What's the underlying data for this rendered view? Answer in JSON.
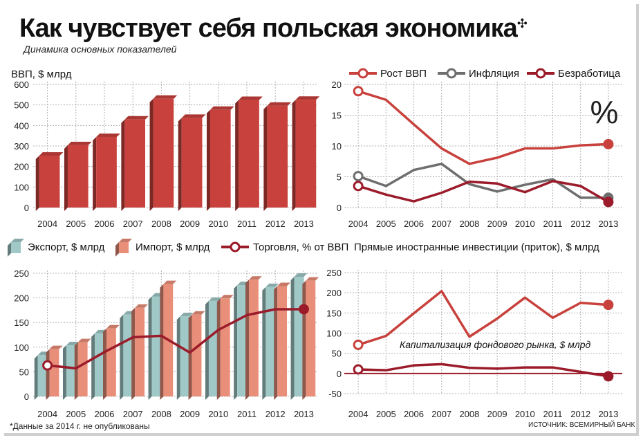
{
  "title": "Как чувствует себя польская экономика",
  "title_mark": "✣",
  "subtitle": "Динамика основных показателей",
  "footnote": "*Данные за 2014 г. не опубликованы",
  "source": "ИСТОЧНИК: ВСЕМИРНЫЙ БАНК",
  "colors": {
    "red": "#c8413c",
    "dark_red": "#9b1b2a",
    "gray": "#6e6e6e",
    "teal": "#9fc8c6",
    "salmon": "#e98e79",
    "grid": "#b0b0b0"
  },
  "chart_data": [
    {
      "id": "gdp",
      "type": "bar",
      "title": "ВВП, $ млрд",
      "categories": [
        "2004",
        "2005",
        "2006",
        "2007",
        "2008",
        "2009",
        "2010",
        "2011",
        "2012",
        "2013"
      ],
      "values": [
        253,
        304,
        344,
        429,
        530,
        437,
        476,
        524,
        496,
        525
      ],
      "ylim": [
        0,
        600
      ],
      "yticks": [
        0,
        100,
        200,
        300,
        400,
        500,
        600
      ],
      "grid": true
    },
    {
      "id": "macro",
      "type": "line",
      "unit_label": "%",
      "x": [
        "2004",
        "2005",
        "2006",
        "2007",
        "2008",
        "2009",
        "2010",
        "2011",
        "2012",
        "2013"
      ],
      "series": [
        {
          "name": "Рост ВВП",
          "color": "red",
          "values": [
            18.9,
            17.5,
            13.5,
            9.6,
            7.1,
            8.1,
            9.6,
            9.6,
            10.1,
            10.3
          ]
        },
        {
          "name": "Инфляция",
          "color": "gray",
          "values": [
            5.1,
            3.5,
            6.1,
            7.1,
            3.8,
            2.6,
            3.7,
            4.6,
            1.6,
            1.6
          ]
        },
        {
          "name": "Безработица",
          "color": "dark_red",
          "values": [
            3.5,
            2.1,
            1.0,
            2.4,
            4.2,
            3.9,
            2.5,
            4.3,
            3.5,
            0.9
          ]
        }
      ],
      "ylim": [
        0,
        20
      ],
      "yticks": [
        0,
        5,
        10,
        15,
        20
      ],
      "legend": "top",
      "grid": true
    },
    {
      "id": "trade",
      "type": "bar",
      "categories": [
        "2004",
        "2005",
        "2006",
        "2007",
        "2008",
        "2009",
        "2010",
        "2011",
        "2012",
        "2013"
      ],
      "series": [
        {
          "name": "Экспорт, $ млрд",
          "color": "teal",
          "values": [
            84,
            104,
            128,
            166,
            203,
            163,
            194,
            226,
            222,
            243
          ]
        },
        {
          "name": "Импорт, $ млрд",
          "color": "salmon",
          "values": [
            96,
            110,
            138,
            180,
            228,
            166,
            199,
            237,
            224,
            235
          ]
        },
        {
          "name": "Торговля, % от ВВП",
          "color": "dark_red",
          "type": "line",
          "values": [
            63,
            57,
            90,
            120,
            123,
            89,
            135,
            165,
            177,
            177
          ]
        }
      ],
      "ylim": [
        0,
        250
      ],
      "yticks": [
        0,
        50,
        100,
        150,
        200,
        250
      ],
      "legend": "top",
      "grid": true
    },
    {
      "id": "fdi",
      "type": "line",
      "title": "Прямые иностранные инвестиции (приток), $ млрд",
      "x": [
        "2004",
        "2005",
        "2006",
        "2007",
        "2008",
        "2009",
        "2010",
        "2011",
        "2012",
        "2013"
      ],
      "series": [
        {
          "name": "Прямые иностранные инвестиции (приток), $ млрд",
          "color": "red",
          "values": [
            71,
            93,
            149,
            204,
            91,
            136,
            188,
            138,
            175,
            170
          ]
        },
        {
          "name": "Капитализация фондового рынка, $ млрд",
          "color": "dark_red",
          "values": [
            10,
            8,
            20,
            23,
            14,
            12,
            15,
            15,
            4,
            -7
          ]
        }
      ],
      "ylim": [
        -50,
        250
      ],
      "yticks": [
        -50,
        0,
        50,
        100,
        150,
        200,
        250
      ],
      "grid": true
    }
  ]
}
